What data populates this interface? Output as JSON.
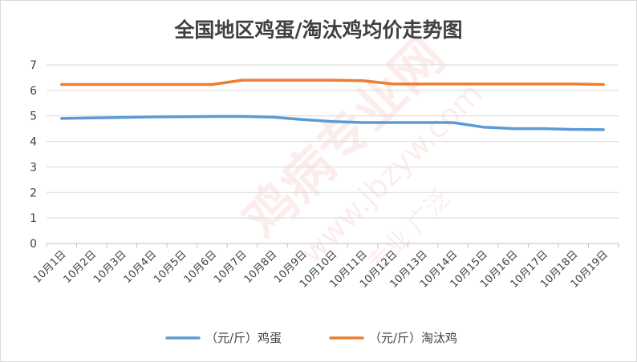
{
  "chart_data": {
    "type": "line",
    "title": "全国地区鸡蛋/淘汰鸡均价走势图",
    "xlabel": "",
    "ylabel": "",
    "ylim": [
      0,
      7
    ],
    "yticks": [
      "0",
      "1",
      "2",
      "3",
      "4",
      "5",
      "6",
      "7"
    ],
    "grid": true,
    "legend_position": "bottom",
    "categories": [
      "10月1日",
      "10月2日",
      "10月3日",
      "10月4日",
      "10月5日",
      "10月6日",
      "10月7日",
      "10月8日",
      "10月9日",
      "10月10日",
      "10月11日",
      "10月12日",
      "10月13日",
      "10月14日",
      "10月15日",
      "10月16日",
      "10月17日",
      "10月18日",
      "10月19日"
    ],
    "series": [
      {
        "name": "（元/斤）鸡蛋",
        "color": "#5b9bd5",
        "values": [
          4.9,
          4.92,
          4.94,
          4.96,
          4.97,
          4.98,
          4.98,
          4.95,
          4.86,
          4.78,
          4.74,
          4.74,
          4.74,
          4.74,
          4.56,
          4.5,
          4.5,
          4.47,
          4.46
        ]
      },
      {
        "name": "（元/斤）淘汰鸡",
        "color": "#ed7d31",
        "values": [
          6.23,
          6.23,
          6.23,
          6.23,
          6.23,
          6.23,
          6.4,
          6.4,
          6.4,
          6.4,
          6.38,
          6.25,
          6.25,
          6.25,
          6.25,
          6.25,
          6.25,
          6.25,
          6.23
        ]
      }
    ]
  },
  "watermark": {
    "brand": "鸡病专业网",
    "url": "www.jbzyw.com",
    "slogan": "专业 广泛"
  }
}
